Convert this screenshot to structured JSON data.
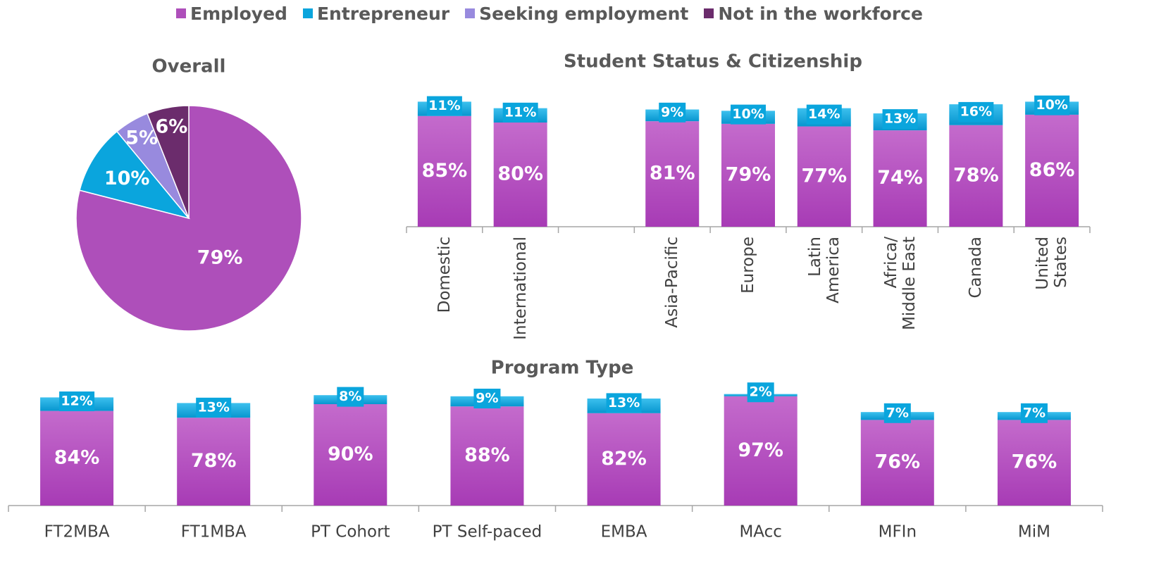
{
  "chart_data": [
    {
      "type": "pie",
      "title": "Overall",
      "categories": [
        "Employed",
        "Entrepreneur",
        "Seeking employment",
        "Not in the workforce"
      ],
      "values": [
        79,
        10,
        5,
        6
      ],
      "value_labels": [
        "79%",
        "10%",
        "5%",
        "6%"
      ],
      "colors": [
        "#ae4fba",
        "#0aa5dd",
        "#988ade",
        "#6b2c6c"
      ]
    },
    {
      "type": "stacked_bar",
      "title": "Student Status & Citizenship",
      "categories": [
        "Domestic",
        "International",
        null,
        "Asia-Pacific",
        "Europe",
        "Latin\nAmerica",
        "Africa/\nMiddle East",
        "Canada",
        "United\nStates"
      ],
      "series": [
        {
          "color": "#ae4fba",
          "values": [
            85,
            80,
            null,
            81,
            79,
            77,
            74,
            78,
            86
          ],
          "value_labels": [
            "85%",
            "80%",
            null,
            "81%",
            "79%",
            "77%",
            "74%",
            "78%",
            "86%"
          ]
        },
        {
          "color": "#0aa5dd",
          "values": [
            11,
            11,
            null,
            9,
            10,
            14,
            13,
            16,
            10
          ],
          "value_labels": [
            "11%",
            "11%",
            null,
            "9%",
            "10%",
            "14%",
            "13%",
            "16%",
            "10%"
          ]
        }
      ]
    },
    {
      "type": "stacked_bar",
      "title": "Program Type",
      "categories": [
        "FT2MBA",
        "FT1MBA",
        "PT Cohort",
        "PT Self-paced",
        "EMBA",
        "MAcc",
        "MFIn",
        "MiM"
      ],
      "series": [
        {
          "color": "#ae4fba",
          "values": [
            84,
            78,
            90,
            88,
            82,
            97,
            76,
            76
          ],
          "value_labels": [
            "84%",
            "78%",
            "90%",
            "88%",
            "82%",
            "97%",
            "76%",
            "76%"
          ]
        },
        {
          "color": "#0aa5dd",
          "values": [
            12,
            13,
            8,
            9,
            13,
            2,
            7,
            7
          ],
          "value_labels": [
            "12%",
            "13%",
            "8%",
            "9%",
            "13%",
            "2%",
            "7%",
            "7%"
          ]
        }
      ]
    }
  ]
}
